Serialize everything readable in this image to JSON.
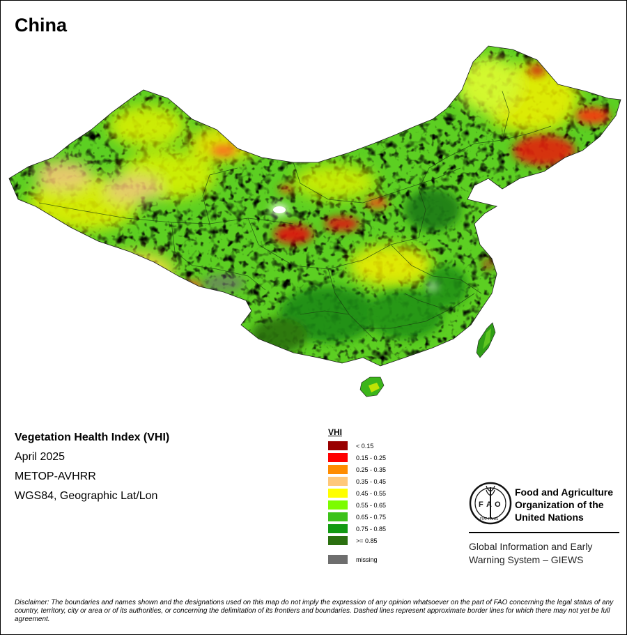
{
  "map": {
    "title": "China",
    "index_name": "Vegetation Health Index (VHI)",
    "period": "April 2025",
    "sensor": "METOP-AVHRR",
    "projection": "WGS84, Geographic Lat/Lon"
  },
  "legend": {
    "title": "VHI",
    "classes": [
      {
        "label": "< 0.15",
        "color": "#990000"
      },
      {
        "label": "0.15 - 0.25",
        "color": "#ff0000"
      },
      {
        "label": "0.25 - 0.35",
        "color": "#ff8c00"
      },
      {
        "label": "0.35 - 0.45",
        "color": "#ffc87a"
      },
      {
        "label": "0.45 - 0.55",
        "color": "#ffff00"
      },
      {
        "label": "0.55 - 0.65",
        "color": "#7cfc00"
      },
      {
        "label": "0.65 - 0.75",
        "color": "#3cc21a"
      },
      {
        "label": "0.75 - 0.85",
        "color": "#129a12"
      },
      {
        "label": ">= 0.85",
        "color": "#2b7010"
      }
    ],
    "missing": {
      "label": "missing",
      "color": "#6e6e6e"
    }
  },
  "organization": {
    "logo_text": "FAO",
    "logo_motto": "FIAT PANIS",
    "name_line1": "Food and Agriculture",
    "name_line2": "Organization of the",
    "name_line3": "United Nations",
    "program_line1": "Global Information and Early",
    "program_line2": "Warning System – GIEWS"
  },
  "disclaimer": "Disclaimer: The boundaries and names shown and the designations used on this map do not imply the expression of any opinion whatsoever on the part of FAO concerning the legal status of any country, territory, city or area or of its authorities, or concerning the delimitation of its frontiers and boundaries. Dashed lines represent approximate border lines for which there may not yet be full agreement."
}
